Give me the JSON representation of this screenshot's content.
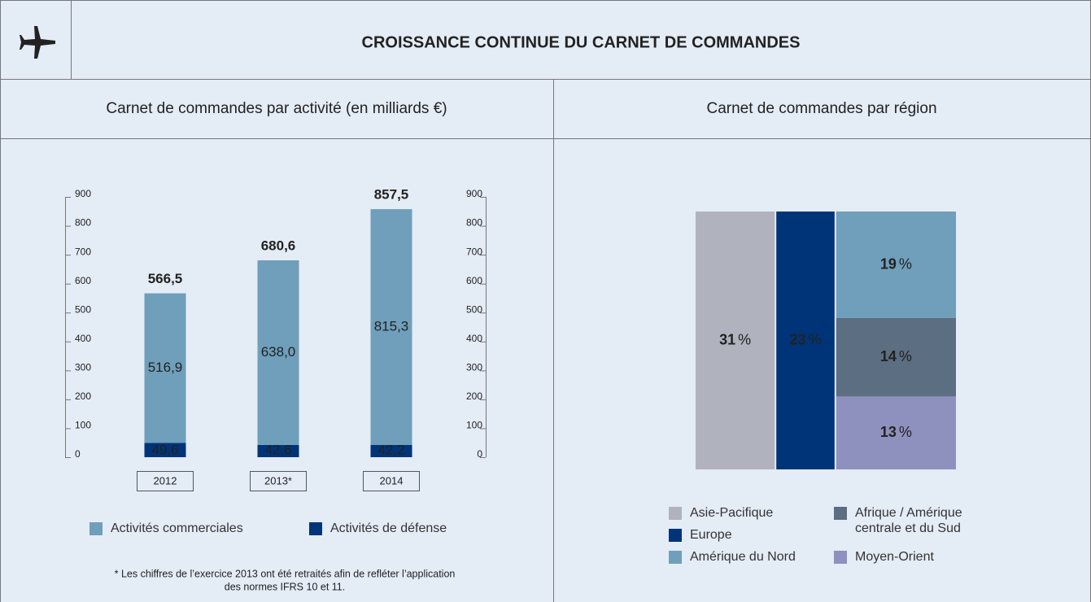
{
  "title": "CROISSANCE CONTINUE DU CARNET DE COMMANDES",
  "chart_data": [
    {
      "type": "bar",
      "stacked": true,
      "title": "Carnet de commandes par activité (en milliards €)",
      "categories": [
        "2012",
        "2013*",
        "2014"
      ],
      "series": [
        {
          "name": "Activités commerciales",
          "color": "#6f9fba",
          "values": [
            516.9,
            638.0,
            815.3
          ],
          "value_labels": [
            "516,9",
            "638,0",
            "815,3"
          ]
        },
        {
          "name": "Activités de défense",
          "color": "#003478",
          "values": [
            49.6,
            42.6,
            42.2
          ],
          "value_labels": [
            "49,6",
            "42,6",
            "42,2"
          ]
        }
      ],
      "totals": [
        566.5,
        680.6,
        857.5
      ],
      "total_labels": [
        "566,5",
        "680,6",
        "857,5"
      ],
      "ylim": [
        0,
        900
      ],
      "yticks": [
        0,
        100,
        200,
        300,
        400,
        500,
        600,
        700,
        800,
        900
      ],
      "y2lim": [
        0,
        900
      ],
      "y2ticks": [
        0,
        100,
        200,
        300,
        400,
        500,
        600,
        700,
        800,
        900
      ],
      "footnote": [
        "* Les chiffres de l’exercice 2013 ont été retraités afin de refléter l’application",
        "des normes IFRS 10 et 11."
      ]
    },
    {
      "type": "mosaic",
      "title": "Carnet de commandes par région",
      "unit": "%",
      "series": [
        {
          "name": "Asie-Pacifique",
          "color": "#b0b3bd",
          "value": 31
        },
        {
          "name": "Europe",
          "color": "#003478",
          "value": 23
        },
        {
          "name": "Amérique du Nord",
          "color": "#6f9fba",
          "value": 19
        },
        {
          "name": "Afrique / Amérique centrale et du Sud",
          "color": "#5b6e82",
          "value": 14
        },
        {
          "name": "Moyen-Orient",
          "color": "#8e91bd",
          "value": 13
        }
      ]
    }
  ]
}
